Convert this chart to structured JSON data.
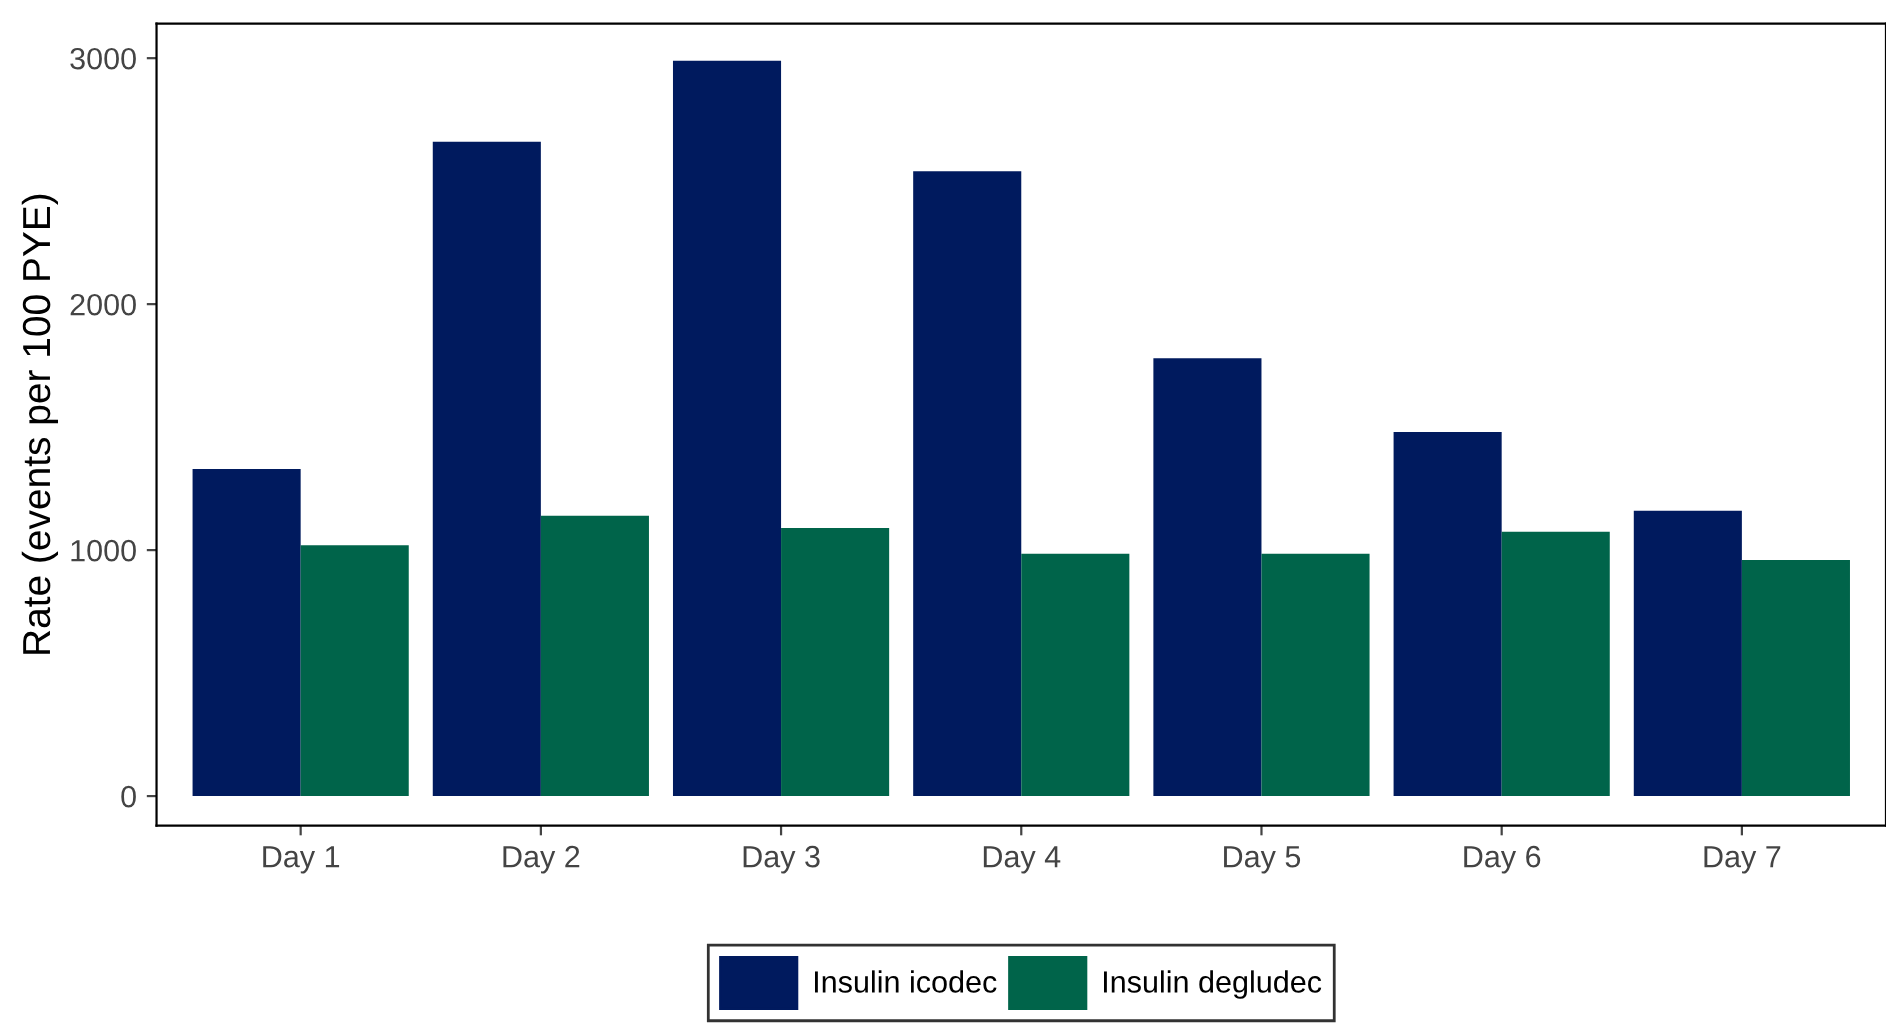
{
  "chart_data": {
    "type": "bar",
    "ylabel": "Rate (events per 100 PYE)",
    "categories": [
      "Day 1",
      "Day 2",
      "Day 3",
      "Day 4",
      "Day 5",
      "Day 6",
      "Day 7"
    ],
    "series": [
      {
        "name": "Insulin icodec",
        "color": "#001a5e",
        "values": [
          1330,
          2660,
          2990,
          2540,
          1780,
          1480,
          1160
        ]
      },
      {
        "name": "Insulin degludec",
        "color": "#00644a",
        "values": [
          1020,
          1140,
          1090,
          985,
          985,
          1075,
          960
        ]
      }
    ],
    "ylim": [
      -120,
      3140
    ],
    "yticks": [
      0,
      1000,
      2000,
      3000
    ],
    "grid": false,
    "legend": "bottom"
  }
}
